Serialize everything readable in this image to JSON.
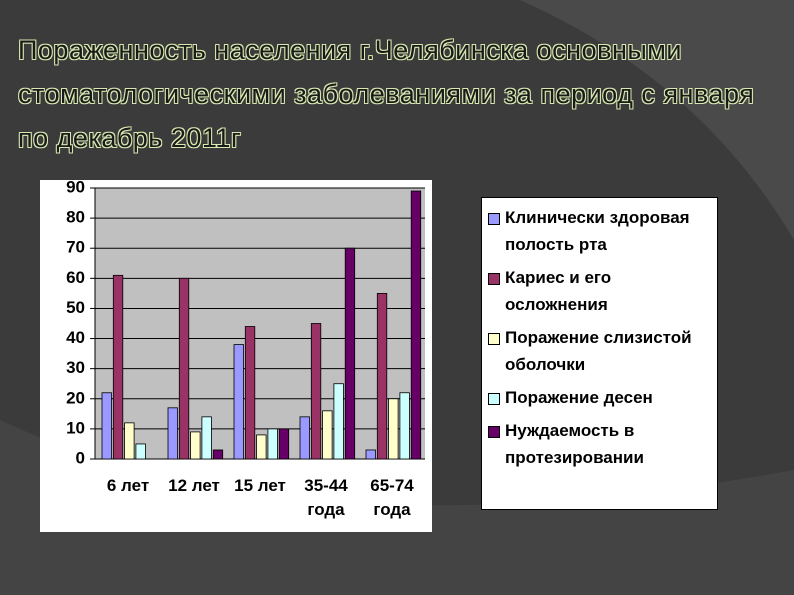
{
  "chart_data": {
    "type": "bar",
    "title": "Пораженность населения г.Челябинска основными стоматологическими заболеваниями за период с января по декабрь 2011г",
    "categories": [
      "6 лет",
      "12 лет",
      "15 лет",
      "35-44 года",
      "65-74 года"
    ],
    "series": [
      {
        "name": "Клинически здоровая полость рта",
        "color": "#9999ff",
        "values": [
          22,
          17,
          38,
          14,
          3
        ]
      },
      {
        "name": "Кариес и его осложнения",
        "color": "#993366",
        "values": [
          61,
          60,
          44,
          45,
          55
        ]
      },
      {
        "name": "Поражение слизистой оболочки",
        "color": "#ffffcc",
        "values": [
          12,
          9,
          8,
          16,
          20
        ]
      },
      {
        "name": "Поражение десен",
        "color": "#ccffff",
        "values": [
          5,
          14,
          10,
          25,
          22
        ]
      },
      {
        "name": "Нуждаемость в протезировании",
        "color": "#660066",
        "values": [
          0,
          3,
          10,
          70,
          89
        ]
      }
    ],
    "ylim": [
      0,
      90
    ],
    "yticks": [
      0,
      10,
      20,
      30,
      40,
      50,
      60,
      70,
      80,
      90
    ],
    "grid": true,
    "legend": "right"
  }
}
